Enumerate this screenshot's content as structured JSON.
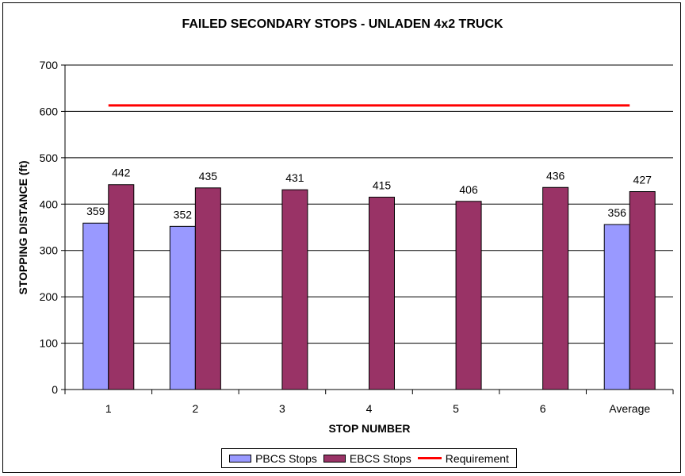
{
  "chart_data": {
    "type": "bar",
    "title": "FAILED SECONDARY STOPS - UNLADEN 4x2 TRUCK",
    "xlabel": "STOP NUMBER",
    "ylabel": "STOPPING DISTANCE (ft)",
    "ylim": [
      0,
      700
    ],
    "yticks": [
      0,
      100,
      200,
      300,
      400,
      500,
      600,
      700
    ],
    "categories": [
      "1",
      "2",
      "3",
      "4",
      "5",
      "6",
      "Average"
    ],
    "series": [
      {
        "name": "PBCS Stops",
        "type": "bar",
        "color": "#9999ff",
        "values": [
          359,
          352,
          null,
          null,
          null,
          null,
          356
        ]
      },
      {
        "name": "EBCS Stops",
        "type": "bar",
        "color": "#993366",
        "values": [
          442,
          435,
          431,
          415,
          406,
          436,
          427
        ]
      },
      {
        "name": "Requirement",
        "type": "line",
        "color": "#ff0000",
        "values": [
          613,
          613,
          613,
          613,
          613,
          613,
          613
        ]
      }
    ],
    "grid": true,
    "legend_position": "bottom"
  }
}
